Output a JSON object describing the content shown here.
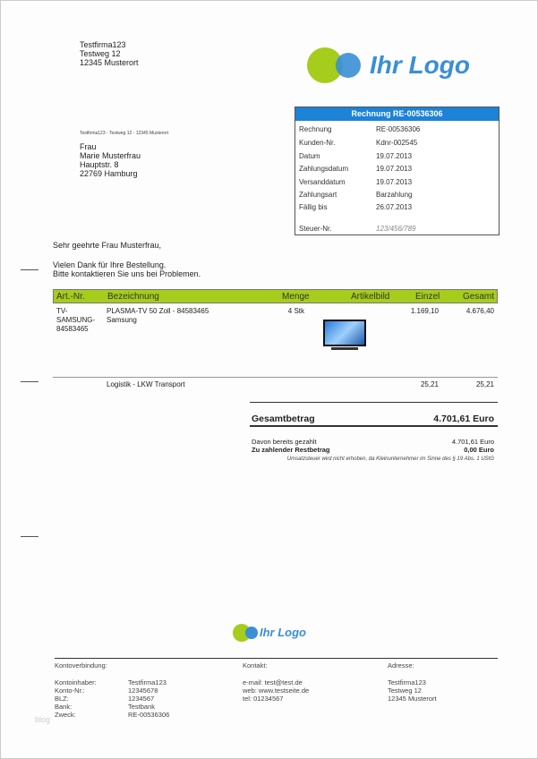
{
  "sender": {
    "lines": [
      "Testfirma123",
      "Testweg 12",
      "12345 Musterort"
    ],
    "small_line": "Testfirma123 - Testweg 12 - 12345 Musterort"
  },
  "logo": {
    "text": "Ihr Logo",
    "green": "#a6cc1c",
    "blue": "#3a8fd6"
  },
  "recipient": [
    "Frau",
    "Marie Musterfrau",
    "Hauptstr. 8",
    "22769 Hamburg"
  ],
  "info": {
    "title": "Rechnung RE-00536306",
    "rows": [
      {
        "label": "Rechnung",
        "value": "RE-00536306"
      },
      {
        "label": "Kunden-Nr.",
        "value": "Kdnr-002545"
      },
      {
        "label": "Datum",
        "value": "19.07.2013"
      },
      {
        "label": "Zahlungsdatum",
        "value": "19.07.2013"
      },
      {
        "label": "Versanddatum",
        "value": "19.07.2013"
      },
      {
        "label": "Zahlungsart",
        "value": "Barzahlung"
      },
      {
        "label": "Fällig bis",
        "value": "26.07.2013"
      }
    ],
    "tax": {
      "label": "Steuer-Nr.",
      "value": "123/456/789"
    }
  },
  "letter": {
    "salutation": "Sehr geehrte Frau Musterfrau,",
    "line1": "Vielen Dank für Ihre Bestellung.",
    "line2": "Bitte kontaktieren Sie uns bei Problemen."
  },
  "table": {
    "headers": {
      "art": "Art.-Nr.",
      "bez": "Bezeichnung",
      "menge": "Menge",
      "bild": "Artikelbild",
      "einzel": "Einzel",
      "gesamt": "Gesamt"
    },
    "rows": [
      {
        "art": "TV-\nSAMSUNG-\n84583465",
        "bez": "PLASMA-TV 50 Zoll - 84583465\nSamsung",
        "menge": "4 Stk",
        "einzel": "1.169,10",
        "gesamt": "4.676,40"
      }
    ],
    "logistics": {
      "bez": "Logistik - LKW Transport",
      "einzel": "25,21",
      "gesamt": "25,21"
    }
  },
  "totals": {
    "label": "Gesamtbetrag",
    "amount": "4.701,61",
    "currency": "Euro",
    "paid_label": "Davon bereits gezahlt",
    "paid": "4.701,61 Euro",
    "rest_label": "Zu zahlender Restbetrag",
    "rest": "0,00 Euro",
    "note": "Umsatzsteuer wird nicht erhoben, da Kleinunternehmer im Sinne des § 19 Abs. 1 UStG"
  },
  "footer": {
    "bank_title": "Kontoverbindung:",
    "bank": [
      [
        "Kontoinhaber:",
        "Testfirma123"
      ],
      [
        "Konto-Nr.:",
        "12345678"
      ],
      [
        "BLZ:",
        "1234567"
      ],
      [
        "Bank:",
        "Testbank"
      ],
      [
        "Zweck:",
        "RE-00536306"
      ]
    ],
    "contact_title": "Kontakt:",
    "contact": [
      "e-mail: test@test.de",
      "web: www.testseite.de",
      "tel: 01234567"
    ],
    "address_title": "Adresse:",
    "address": [
      "Testfirma123",
      "Testweg 12",
      "12345 Musterort"
    ]
  },
  "watermark": "blog"
}
